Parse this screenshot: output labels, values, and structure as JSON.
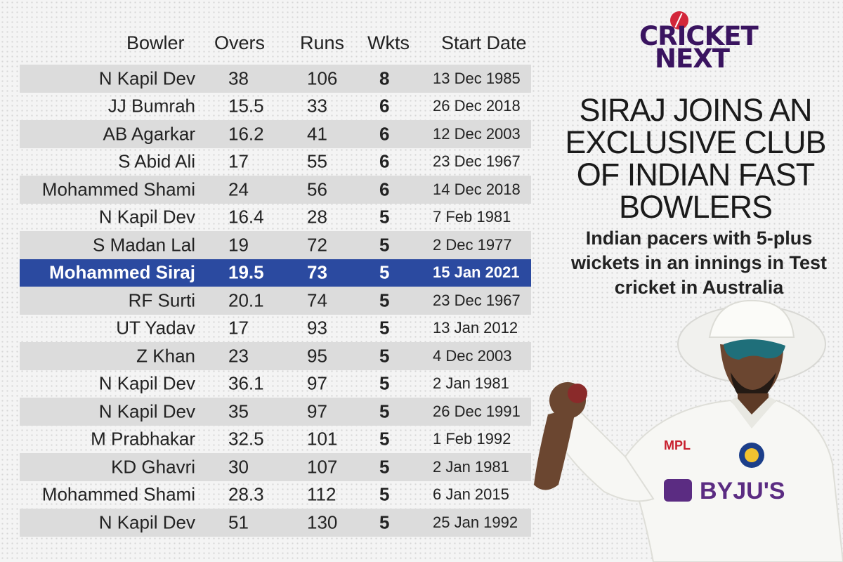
{
  "logo": {
    "line1": "CRICKET",
    "line2": "NEXT"
  },
  "headline": "SIRAJ JOINS AN EXCLUSIVE CLUB OF INDIAN FAST BOWLERS",
  "subhead": "Indian pacers with 5-plus wickets in an innings in Test cricket in Australia",
  "chart_data": {
    "type": "table",
    "columns": [
      "Bowler",
      "Overs",
      "Runs",
      "Wkts",
      "Start Date"
    ],
    "rows": [
      {
        "bowler": "N Kapil Dev",
        "overs": "38",
        "runs": "106",
        "wkts": "8",
        "date": "13 Dec 1985"
      },
      {
        "bowler": "JJ Bumrah",
        "overs": "15.5",
        "runs": "33",
        "wkts": "6",
        "date": "26 Dec 2018"
      },
      {
        "bowler": "AB Agarkar",
        "overs": "16.2",
        "runs": "41",
        "wkts": "6",
        "date": "12 Dec 2003"
      },
      {
        "bowler": "S Abid Ali",
        "overs": "17",
        "runs": "55",
        "wkts": "6",
        "date": "23 Dec 1967"
      },
      {
        "bowler": "Mohammed Shami",
        "overs": "24",
        "runs": "56",
        "wkts": "6",
        "date": "14 Dec 2018"
      },
      {
        "bowler": "N Kapil Dev",
        "overs": "16.4",
        "runs": "28",
        "wkts": "5",
        "date": "7 Feb 1981"
      },
      {
        "bowler": "S Madan Lal",
        "overs": "19",
        "runs": "72",
        "wkts": "5",
        "date": "2 Dec 1977"
      },
      {
        "bowler": "Mohammed Siraj",
        "overs": "19.5",
        "runs": "73",
        "wkts": "5",
        "date": "15 Jan 2021",
        "highlight": true
      },
      {
        "bowler": "RF Surti",
        "overs": "20.1",
        "runs": "74",
        "wkts": "5",
        "date": "23 Dec 1967"
      },
      {
        "bowler": "UT Yadav",
        "overs": "17",
        "runs": "93",
        "wkts": "5",
        "date": "13 Jan 2012"
      },
      {
        "bowler": "Z Khan",
        "overs": "23",
        "runs": "95",
        "wkts": "5",
        "date": "4 Dec 2003"
      },
      {
        "bowler": "N Kapil Dev",
        "overs": "36.1",
        "runs": "97",
        "wkts": "5",
        "date": "2 Jan 1981"
      },
      {
        "bowler": "N Kapil Dev",
        "overs": "35",
        "runs": "97",
        "wkts": "5",
        "date": "26 Dec 1991"
      },
      {
        "bowler": "M Prabhakar",
        "overs": "32.5",
        "runs": "101",
        "wkts": "5",
        "date": "1 Feb 1992"
      },
      {
        "bowler": "KD Ghavri",
        "overs": "30",
        "runs": "107",
        "wkts": "5",
        "date": "2 Jan 1981"
      },
      {
        "bowler": "Mohammed Shami",
        "overs": "28.3",
        "runs": "112",
        "wkts": "5",
        "date": "6 Jan 2015"
      },
      {
        "bowler": "N Kapil Dev",
        "overs": "51",
        "runs": "130",
        "wkts": "5",
        "date": "25 Jan 1992"
      }
    ],
    "highlight_color": "#2b4aa0",
    "stripe_color": "#dcdcdc"
  }
}
